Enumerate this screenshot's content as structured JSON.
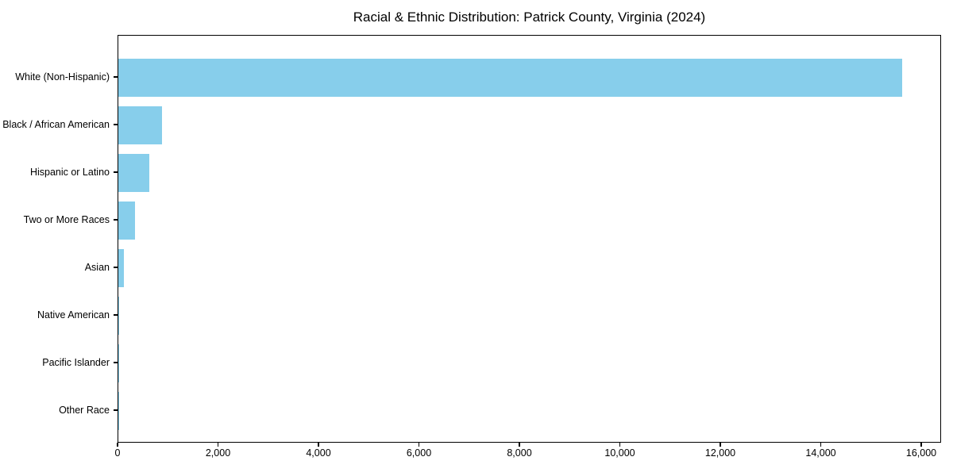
{
  "chart_data": {
    "type": "bar",
    "orientation": "horizontal",
    "title": "Racial & Ethnic Distribution: Patrick County, Virginia (2024)",
    "categories": [
      "White (Non-Hispanic)",
      "Black / African American",
      "Hispanic or Latino",
      "Two or More Races",
      "Asian",
      "Native American",
      "Pacific Islander",
      "Other Race"
    ],
    "values": [
      15600,
      870,
      620,
      330,
      110,
      20,
      8,
      3
    ],
    "xlabel": "",
    "ylabel": "",
    "xlim": [
      0,
      16395
    ],
    "x_ticks": [
      0,
      2000,
      4000,
      6000,
      8000,
      10000,
      12000,
      14000,
      16000
    ],
    "x_tick_labels": [
      "0",
      "2,000",
      "4,000",
      "6,000",
      "8,000",
      "10,000",
      "12,000",
      "14,000",
      "16,000"
    ],
    "bar_color": "#87CEEB",
    "frame_color": "#000000",
    "grid": false,
    "legend": "none",
    "sort_order": "descending"
  }
}
